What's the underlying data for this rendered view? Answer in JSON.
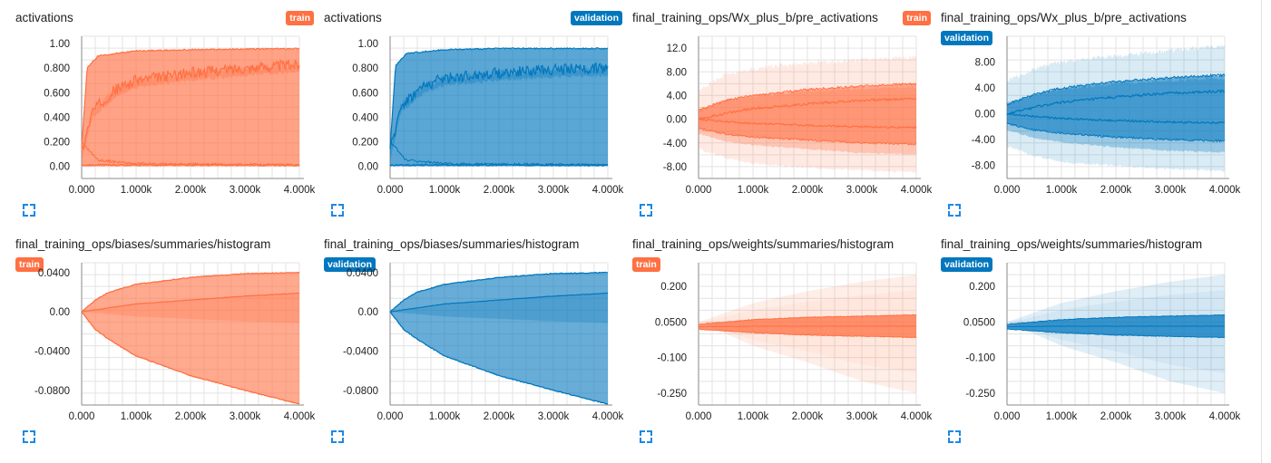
{
  "chart_data": [
    {
      "type": "area",
      "title": "activations",
      "run": "train",
      "color": "#ff7043",
      "ylim": [
        -0.1,
        1.06
      ],
      "xlim": [
        0,
        4000
      ],
      "yticks": [
        0.0,
        0.2,
        0.4,
        0.6,
        0.8,
        1.0
      ],
      "ytick_labels": [
        "0.00",
        "0.200",
        "0.400",
        "0.600",
        "0.800",
        "1.00"
      ],
      "xtick_labels": [
        "0.000",
        "1.000k",
        "2.000k",
        "3.000k",
        "4.000k"
      ],
      "shape": "act",
      "series": [
        {
          "name": "max",
          "x": [
            0,
            100,
            300,
            1000,
            2000,
            4000
          ],
          "values": [
            0.15,
            0.8,
            0.9,
            0.94,
            0.95,
            0.96
          ]
        },
        {
          "name": "upper",
          "x": [
            0,
            200,
            600,
            1000,
            2000,
            3000,
            4000
          ],
          "values": [
            0.12,
            0.45,
            0.62,
            0.7,
            0.76,
            0.8,
            0.83
          ]
        },
        {
          "name": "min",
          "x": [
            0,
            4000
          ],
          "values": [
            0.0,
            0.0
          ]
        }
      ]
    },
    {
      "type": "area",
      "title": "activations",
      "run": "validation",
      "color": "#0277bd",
      "ylim": [
        -0.1,
        1.06
      ],
      "xlim": [
        0,
        4000
      ],
      "yticks": [
        0.0,
        0.2,
        0.4,
        0.6,
        0.8,
        1.0
      ],
      "ytick_labels": [
        "0.00",
        "0.200",
        "0.400",
        "0.600",
        "0.800",
        "1.00"
      ],
      "xtick_labels": [
        "0.000",
        "1.000k",
        "2.000k",
        "3.000k",
        "4.000k"
      ],
      "shape": "act",
      "series": [
        {
          "name": "max",
          "x": [
            0,
            100,
            300,
            1000,
            2000,
            4000
          ],
          "values": [
            0.15,
            0.82,
            0.92,
            0.95,
            0.96,
            0.96
          ]
        },
        {
          "name": "upper",
          "x": [
            0,
            200,
            600,
            1000,
            2000,
            3000,
            4000
          ],
          "values": [
            0.12,
            0.5,
            0.65,
            0.72,
            0.76,
            0.79,
            0.8
          ]
        },
        {
          "name": "min",
          "x": [
            0,
            4000
          ],
          "values": [
            0.0,
            0.0
          ]
        }
      ]
    },
    {
      "type": "area",
      "title": "final_training_ops/Wx_plus_b/pre_activations",
      "run": "train",
      "color": "#ff7043",
      "ylim": [
        -10,
        14
      ],
      "xlim": [
        0,
        4000
      ],
      "yticks": [
        -8,
        -4,
        0,
        4,
        8,
        12
      ],
      "ytick_labels": [
        "-8.00",
        "-4.00",
        "0.00",
        "4.00",
        "8.00",
        "12.0"
      ],
      "xtick_labels": [
        "0.000",
        "1.000k",
        "2.000k",
        "3.000k",
        "4.000k"
      ],
      "shape": "spread",
      "series": [
        {
          "name": "outer",
          "x": [
            0,
            500,
            1000,
            2000,
            3000,
            4000
          ],
          "values": [
            5,
            7.5,
            8.5,
            9.5,
            10,
            10.5
          ]
        },
        {
          "name": "outer_low",
          "x": [
            0,
            500,
            1000,
            2000,
            3000,
            4000
          ],
          "values": [
            -5,
            -6.5,
            -7.5,
            -8.2,
            -8.6,
            -9
          ]
        },
        {
          "name": "band_high",
          "x": [
            0,
            500,
            1000,
            2000,
            3000,
            4000
          ],
          "values": [
            1.5,
            3.2,
            4.0,
            5.0,
            5.6,
            6.0
          ]
        },
        {
          "name": "band_low",
          "x": [
            0,
            500,
            1000,
            2000,
            3000,
            4000
          ],
          "values": [
            -1.5,
            -2.5,
            -3.0,
            -3.5,
            -4.0,
            -4.2
          ]
        },
        {
          "name": "mid",
          "x": [
            0,
            500,
            1000,
            2000,
            3000,
            4000
          ],
          "values": [
            0,
            1.0,
            1.8,
            2.6,
            3.2,
            3.5
          ]
        }
      ]
    },
    {
      "type": "area",
      "title": "final_training_ops/Wx_plus_b/pre_activations",
      "run": "validation",
      "color": "#0277bd",
      "ylim": [
        -10,
        12
      ],
      "xlim": [
        0,
        4000
      ],
      "yticks": [
        -8,
        -4,
        0,
        4,
        8
      ],
      "ytick_labels": [
        "-8.00",
        "-4.00",
        "0.00",
        "4.00",
        "8.00"
      ],
      "xtick_labels": [
        "0.000",
        "1.000k",
        "2.000k",
        "3.000k",
        "4.000k"
      ],
      "shape": "spread",
      "series": [
        {
          "name": "outer",
          "x": [
            0,
            500,
            1000,
            2000,
            3000,
            4000
          ],
          "values": [
            5,
            7.0,
            8.0,
            9.0,
            9.8,
            10.5
          ]
        },
        {
          "name": "outer_low",
          "x": [
            0,
            500,
            1000,
            2000,
            3000,
            4000
          ],
          "values": [
            -5,
            -6.5,
            -7.5,
            -8.0,
            -8.5,
            -8.8
          ]
        },
        {
          "name": "band_high",
          "x": [
            0,
            500,
            1000,
            2000,
            3000,
            4000
          ],
          "values": [
            1.5,
            3.0,
            4.0,
            5.0,
            5.6,
            6.0
          ]
        },
        {
          "name": "band_low",
          "x": [
            0,
            500,
            1000,
            2000,
            3000,
            4000
          ],
          "values": [
            -1.5,
            -2.5,
            -3.0,
            -3.6,
            -4.0,
            -4.2
          ]
        },
        {
          "name": "mid",
          "x": [
            0,
            500,
            1000,
            2000,
            3000,
            4000
          ],
          "values": [
            0,
            1.0,
            1.8,
            2.6,
            3.2,
            3.5
          ]
        }
      ]
    },
    {
      "type": "area",
      "title": "final_training_ops/biases/summaries/histogram",
      "run": "train",
      "color": "#ff7043",
      "ylim": [
        -0.095,
        0.05
      ],
      "xlim": [
        0,
        4000
      ],
      "yticks": [
        -0.08,
        -0.04,
        0.0,
        0.04
      ],
      "ytick_labels": [
        "-0.0800",
        "-0.0400",
        "0.00",
        "0.0400"
      ],
      "xtick_labels": [
        "0.000",
        "1.000k",
        "2.000k",
        "3.000k",
        "4.000k"
      ],
      "shape": "bias",
      "series": [
        {
          "name": "max",
          "x": [
            0,
            250,
            500,
            1000,
            2000,
            3000,
            4000
          ],
          "values": [
            0,
            0.012,
            0.02,
            0.028,
            0.035,
            0.039,
            0.04
          ]
        },
        {
          "name": "mid",
          "x": [
            0,
            500,
            1000,
            2000,
            3000,
            4000
          ],
          "values": [
            0,
            0.004,
            0.008,
            0.012,
            0.016,
            0.019
          ]
        },
        {
          "name": "min",
          "x": [
            0,
            250,
            500,
            1000,
            2000,
            3000,
            4000
          ],
          "values": [
            0,
            -0.018,
            -0.028,
            -0.045,
            -0.065,
            -0.08,
            -0.094
          ]
        }
      ]
    },
    {
      "type": "area",
      "title": "final_training_ops/biases/summaries/histogram",
      "run": "validation",
      "color": "#0277bd",
      "ylim": [
        -0.095,
        0.05
      ],
      "xlim": [
        0,
        4000
      ],
      "yticks": [
        -0.08,
        -0.04,
        0.0,
        0.04
      ],
      "ytick_labels": [
        "-0.0800",
        "-0.0400",
        "0.00",
        "0.0400"
      ],
      "xtick_labels": [
        "0.000",
        "1.000k",
        "2.000k",
        "3.000k",
        "4.000k"
      ],
      "shape": "bias",
      "series": [
        {
          "name": "max",
          "x": [
            0,
            250,
            500,
            1000,
            2000,
            3000,
            4000
          ],
          "values": [
            0,
            0.012,
            0.02,
            0.028,
            0.035,
            0.039,
            0.04
          ]
        },
        {
          "name": "mid",
          "x": [
            0,
            500,
            1000,
            2000,
            3000,
            4000
          ],
          "values": [
            0,
            0.004,
            0.008,
            0.012,
            0.016,
            0.019
          ]
        },
        {
          "name": "min",
          "x": [
            0,
            250,
            500,
            1000,
            2000,
            3000,
            4000
          ],
          "values": [
            0,
            -0.018,
            -0.028,
            -0.045,
            -0.065,
            -0.08,
            -0.094
          ]
        }
      ]
    },
    {
      "type": "area",
      "title": "final_training_ops/weights/summaries/histogram",
      "run": "train",
      "color": "#ff7043",
      "ylim": [
        -0.3,
        0.3
      ],
      "xlim": [
        0,
        4000
      ],
      "yticks": [
        -0.25,
        -0.1,
        0.05,
        0.2
      ],
      "ytick_labels": [
        "-0.250",
        "-0.100",
        "0.0500",
        "0.200"
      ],
      "xtick_labels": [
        "0.000",
        "1.000k",
        "2.000k",
        "3.000k",
        "4.000k"
      ],
      "shape": "weights",
      "series": [
        {
          "name": "outer_high",
          "x": [
            0,
            1000,
            2000,
            3000,
            4000
          ],
          "values": [
            0.05,
            0.13,
            0.18,
            0.22,
            0.25
          ]
        },
        {
          "name": "outer_low",
          "x": [
            0,
            1000,
            2000,
            3000,
            4000
          ],
          "values": [
            0.05,
            -0.05,
            -0.12,
            -0.2,
            -0.25
          ]
        },
        {
          "name": "band_high",
          "x": [
            0,
            1000,
            2000,
            3000,
            4000
          ],
          "values": [
            0.04,
            0.06,
            0.07,
            0.075,
            0.08
          ]
        },
        {
          "name": "band_low",
          "x": [
            0,
            1000,
            2000,
            3000,
            4000
          ],
          "values": [
            0.02,
            0.005,
            -0.005,
            -0.01,
            -0.015
          ]
        }
      ]
    },
    {
      "type": "area",
      "title": "final_training_ops/weights/summaries/histogram",
      "run": "validation",
      "color": "#0277bd",
      "ylim": [
        -0.3,
        0.3
      ],
      "xlim": [
        0,
        4000
      ],
      "yticks": [
        -0.25,
        -0.1,
        0.05,
        0.2
      ],
      "ytick_labels": [
        "-0.250",
        "-0.100",
        "0.0500",
        "0.200"
      ],
      "xtick_labels": [
        "0.000",
        "1.000k",
        "2.000k",
        "3.000k",
        "4.000k"
      ],
      "shape": "weights",
      "series": [
        {
          "name": "outer_high",
          "x": [
            0,
            1000,
            2000,
            3000,
            4000
          ],
          "values": [
            0.05,
            0.13,
            0.18,
            0.22,
            0.25
          ]
        },
        {
          "name": "outer_low",
          "x": [
            0,
            1000,
            2000,
            3000,
            4000
          ],
          "values": [
            0.05,
            -0.05,
            -0.12,
            -0.2,
            -0.25
          ]
        },
        {
          "name": "band_high",
          "x": [
            0,
            1000,
            2000,
            3000,
            4000
          ],
          "values": [
            0.04,
            0.06,
            0.07,
            0.075,
            0.08
          ]
        },
        {
          "name": "band_low",
          "x": [
            0,
            1000,
            2000,
            3000,
            4000
          ],
          "values": [
            0.02,
            0.005,
            -0.005,
            -0.01,
            -0.015
          ]
        }
      ]
    }
  ]
}
